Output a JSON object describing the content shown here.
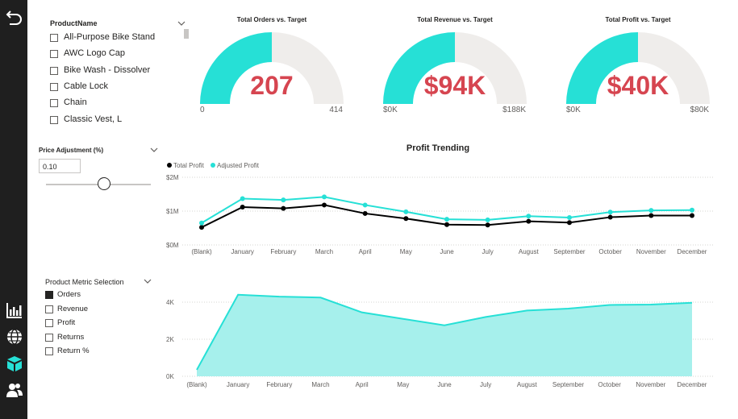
{
  "colors": {
    "accent": "#26e0d6",
    "value": "#d64550",
    "nav_bg": "#1f1f1f",
    "track": "#efedeb",
    "area_fill": "#a6f0ec"
  },
  "nav": {
    "icons": [
      "back-arrow-icon",
      "bar-chart-icon",
      "globe-icon",
      "box-icon",
      "users-icon"
    ]
  },
  "product_slicer": {
    "title": "ProductName",
    "items": [
      "All-Purpose Bike Stand",
      "AWC Logo Cap",
      "Bike Wash - Dissolver",
      "Cable Lock",
      "Chain",
      "Classic Vest, L"
    ]
  },
  "price_adjustment": {
    "title": "Price Adjustment (%)",
    "value": "0.10",
    "slider_fraction": 0.55
  },
  "metric_selection": {
    "title": "Product Metric Selection",
    "items": [
      {
        "label": "Orders",
        "checked": true
      },
      {
        "label": "Revenue",
        "checked": false
      },
      {
        "label": "Profit",
        "checked": false
      },
      {
        "label": "Returns",
        "checked": false
      },
      {
        "label": "Return %",
        "checked": false
      }
    ]
  },
  "gauges": [
    {
      "title": "Total Orders vs. Target",
      "value": "207",
      "min": "0",
      "max": "414",
      "fraction": 0.5
    },
    {
      "title": "Total Revenue vs. Target",
      "value": "$94K",
      "min": "$0K",
      "max": "$188K",
      "fraction": 0.5
    },
    {
      "title": "Total Profit vs. Target",
      "value": "$40K",
      "min": "$0K",
      "max": "$80K",
      "fraction": 0.5
    }
  ],
  "chart_data": [
    {
      "type": "line",
      "title": "Profit Trending",
      "legend": [
        "Total Profit",
        "Adjusted Profit"
      ],
      "categories": [
        "(Blank)",
        "January",
        "February",
        "March",
        "April",
        "May",
        "June",
        "July",
        "August",
        "September",
        "October",
        "November",
        "December"
      ],
      "y_ticks": [
        "$0M",
        "$1M",
        "$2M"
      ],
      "ylim": [
        0,
        2
      ],
      "series": [
        {
          "name": "Total Profit",
          "color": "#000000",
          "values": [
            0.52,
            1.12,
            1.08,
            1.18,
            0.93,
            0.78,
            0.6,
            0.59,
            0.7,
            0.66,
            0.82,
            0.87,
            0.87
          ]
        },
        {
          "name": "Adjusted Profit",
          "color": "#26e0d6",
          "values": [
            0.65,
            1.37,
            1.33,
            1.42,
            1.18,
            0.98,
            0.76,
            0.74,
            0.85,
            0.81,
            0.97,
            1.02,
            1.03
          ]
        }
      ]
    },
    {
      "type": "area",
      "categories": [
        "(Blank)",
        "January",
        "February",
        "March",
        "April",
        "May",
        "June",
        "July",
        "August",
        "September",
        "October",
        "November",
        "December"
      ],
      "y_ticks": [
        "0K",
        "2K",
        "4K"
      ],
      "ylim": [
        0,
        5
      ],
      "series": [
        {
          "name": "Orders",
          "color": "#26e0d6",
          "values": [
            0.35,
            4.4,
            4.3,
            4.25,
            3.45,
            3.1,
            2.75,
            3.2,
            3.55,
            3.65,
            3.85,
            3.87,
            3.97
          ]
        }
      ]
    }
  ]
}
